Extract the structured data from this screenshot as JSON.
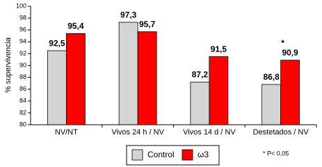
{
  "chart_data": {
    "type": "bar",
    "y_label": "% supervivencia",
    "categories": [
      "NV/NT",
      "Vivos 24 h / NV",
      "Vivos 14 d / NV",
      "Destetados / NV"
    ],
    "series": [
      {
        "name": "Control",
        "color": "#d4d4d4",
        "values": [
          92.5,
          97.3,
          87.2,
          86.8
        ],
        "value_labels": [
          "92,5",
          "97,3",
          "87,2",
          "86,8"
        ]
      },
      {
        "name": "ω3",
        "color": "#ff0000",
        "values": [
          95.4,
          95.7,
          91.5,
          90.9
        ],
        "value_labels": [
          "95,4",
          "95,7",
          "91,5",
          "90,9"
        ]
      }
    ],
    "ylim": [
      80,
      100
    ],
    "yticks": [
      80,
      82,
      84,
      86,
      88,
      90,
      92,
      94,
      96,
      98,
      100
    ],
    "grid": false,
    "annotation": "*",
    "footnote": "* P< 0,05"
  }
}
